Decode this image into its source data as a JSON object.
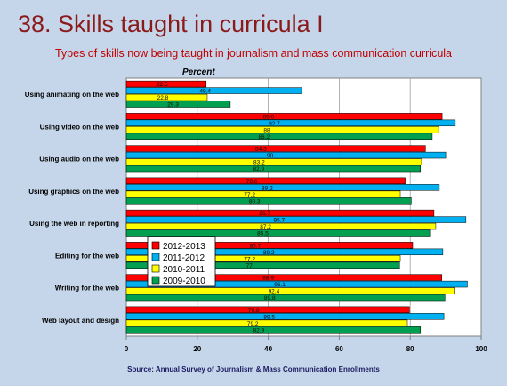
{
  "slide": {
    "title": "38. Skills taught in curricula I",
    "subtitle": "Types of skills now being taught in journalism and mass communication curricula",
    "source": "Source: Annual Survey of Journalism & Mass Communication Enrollments"
  },
  "chart_data": {
    "type": "bar",
    "orientation": "horizontal",
    "ylabel": "Percent",
    "xlim": [
      0,
      100
    ],
    "x_ticks": [
      0,
      20,
      40,
      60,
      80,
      100
    ],
    "categories": [
      "Using animating on the web",
      "Using video on the web",
      "Using audio on the web",
      "Using graphics on the web",
      "Using the web in reporting",
      "Editing for the web",
      "Writing for the web",
      "Web layout and design"
    ],
    "series": [
      {
        "name": "2012-2013",
        "color": "#ff0000",
        "values": [
          22.5,
          89.0,
          84.3,
          78.6,
          86.7,
          80.7,
          88.9,
          79.8
        ]
      },
      {
        "name": "2011-2012",
        "color": "#00b0f0",
        "values": [
          49.4,
          92.7,
          90,
          88.2,
          95.7,
          89.2,
          96.1,
          89.5
        ]
      },
      {
        "name": "2010-2011",
        "color": "#ffff00",
        "values": [
          22.8,
          88,
          83.2,
          77.2,
          87.2,
          77.2,
          92.4,
          79.2
        ]
      },
      {
        "name": "2009-2010",
        "color": "#00a050",
        "values": [
          29.3,
          86.2,
          82.9,
          80.3,
          85.5,
          77,
          89.8,
          82.9
        ]
      }
    ],
    "value_labels": [
      [
        "22.5",
        "49.4",
        "22.8",
        "29.3"
      ],
      [
        "89.0",
        "92.7",
        "88",
        "86.2"
      ],
      [
        "84.3",
        "90",
        "83.2",
        "82.9"
      ],
      [
        "78.6",
        "88.2",
        "77.2",
        "80.3"
      ],
      [
        "86.7",
        "95.7",
        "87.2",
        "85.5"
      ],
      [
        "80.7",
        "89.2",
        "77.2",
        "77"
      ],
      [
        "88.9",
        "96.1",
        "92.4",
        "89.8"
      ],
      [
        "79.8",
        "89.5",
        "79.2",
        "82.9"
      ]
    ],
    "legend_position": "overlapping lower-left of plot"
  }
}
